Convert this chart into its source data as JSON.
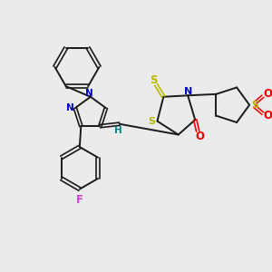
{
  "bg_color": "#ebebeb",
  "bond_color": "#1a1a1a",
  "S_color": "#b8b800",
  "N_color": "#0000cc",
  "O_color": "#ee0000",
  "F_color": "#cc44cc",
  "H_color": "#008888",
  "figsize": [
    3.0,
    3.0
  ],
  "dpi": 100,
  "xlim": [
    0,
    10
  ],
  "ylim": [
    0,
    10
  ]
}
